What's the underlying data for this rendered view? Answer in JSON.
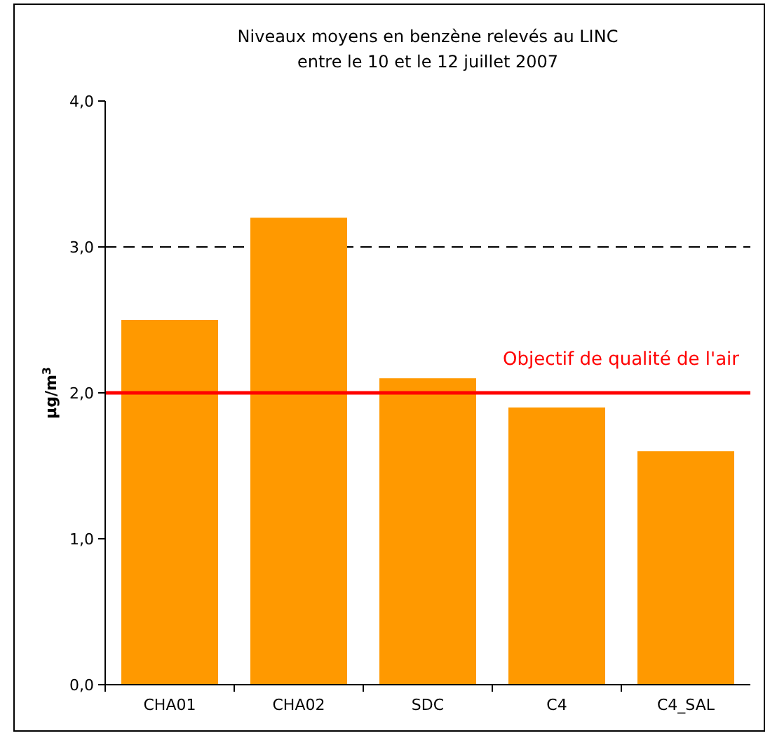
{
  "chart_data": {
    "type": "bar",
    "title": "Niveaux moyens en benzène relevés au LINC",
    "subtitle": "entre le 10 et le 12 juillet 2007",
    "ylabel": "µg/m$^{3}$",
    "categories": [
      "CHA01",
      "CHA02",
      "SDC",
      "C4",
      "C4_SAL"
    ],
    "values": [
      2.5,
      3.2,
      2.1,
      1.9,
      1.6
    ],
    "color": "#ff9900",
    "ylim": [
      0,
      4
    ],
    "yticks": [
      {
        "value": 0,
        "label": "0,0"
      },
      {
        "value": 1,
        "label": "1,0"
      },
      {
        "value": 2,
        "label": "2,0"
      },
      {
        "value": 3,
        "label": "3,0"
      },
      {
        "value": 4,
        "label": "4,0"
      }
    ],
    "ref_lines": [
      {
        "axis": "y",
        "value": 3,
        "line_style": "dashed",
        "color": "#000000"
      },
      {
        "axis": "y",
        "value": 2,
        "label": "Objectif de qualité de l'air",
        "color": "#ff0000",
        "line_style": "solid"
      }
    ]
  }
}
